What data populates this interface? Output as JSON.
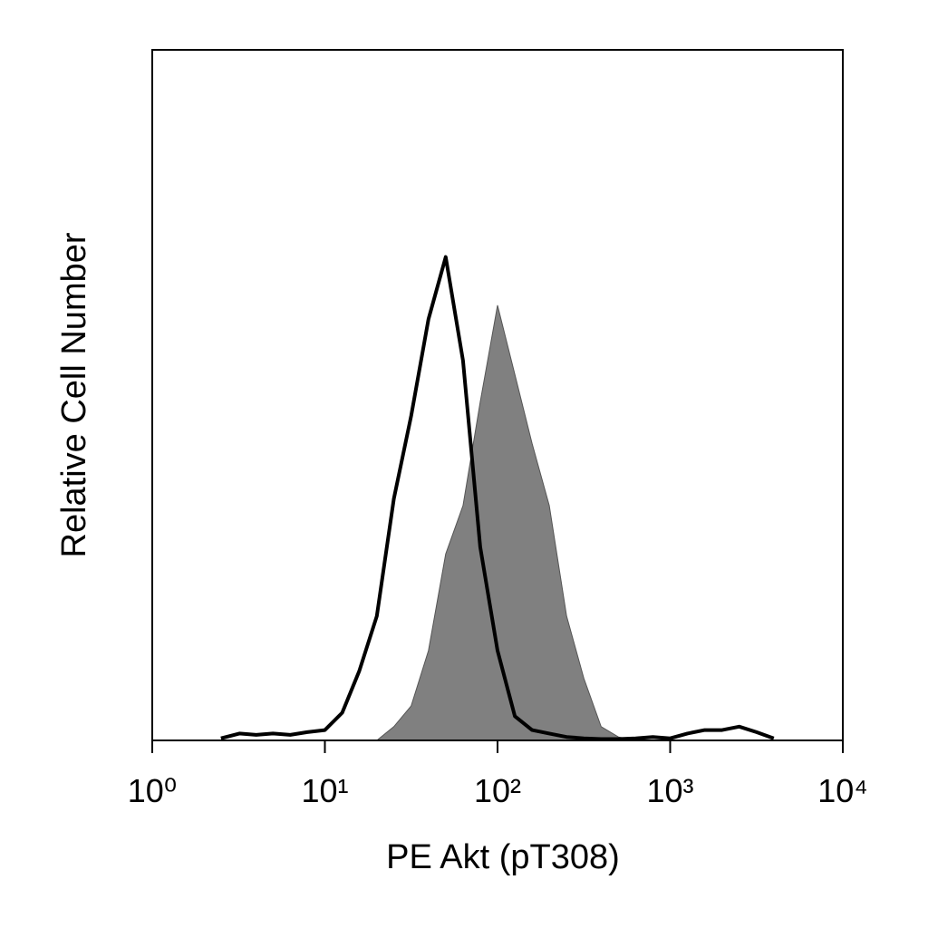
{
  "chart_data": {
    "type": "line",
    "xlabel": "PE Akt (pT308)",
    "ylabel": "Relative Cell Number",
    "xscale": "log",
    "xlim": [
      1,
      10000
    ],
    "xticks": [
      {
        "value": 1,
        "label": "10⁰"
      },
      {
        "value": 10,
        "label": "10¹"
      },
      {
        "value": 100,
        "label": "10²"
      },
      {
        "value": 1000,
        "label": "10³"
      },
      {
        "value": 10000,
        "label": "10⁴"
      }
    ],
    "ylim": [
      0,
      100
    ],
    "x": [
      2.5,
      3.2,
      4,
      5,
      6.3,
      7.9,
      10,
      12.6,
      15.8,
      20,
      25.1,
      31.6,
      39.8,
      50.1,
      63.1,
      79.4,
      100,
      125.9,
      158.5,
      199.5,
      251.2,
      316.2,
      398.1,
      501.2,
      631,
      794.3,
      1000,
      1258.9,
      1584.9,
      1995.3,
      2511.9,
      3162.3,
      3981.1
    ],
    "series": [
      {
        "color": "#808080",
        "style": "filled",
        "values": [
          0,
          0,
          0,
          0,
          0,
          0,
          0,
          0,
          0,
          0,
          2,
          5,
          13,
          27,
          34,
          49,
          63,
          53,
          43,
          34,
          18,
          9,
          2,
          0.5,
          0,
          0,
          0,
          0,
          0,
          0,
          0,
          0,
          0
        ]
      },
      {
        "color": "#000000",
        "style": "line",
        "values": [
          0.3,
          1,
          0.8,
          1,
          0.8,
          1.2,
          1.5,
          4,
          10,
          18,
          35,
          47,
          61,
          70,
          55,
          28,
          13,
          3.5,
          1.5,
          1,
          0.5,
          0.3,
          0.2,
          0.2,
          0.3,
          0.5,
          0.3,
          1,
          1.5,
          1.5,
          2,
          1.2,
          0.3
        ]
      }
    ]
  }
}
